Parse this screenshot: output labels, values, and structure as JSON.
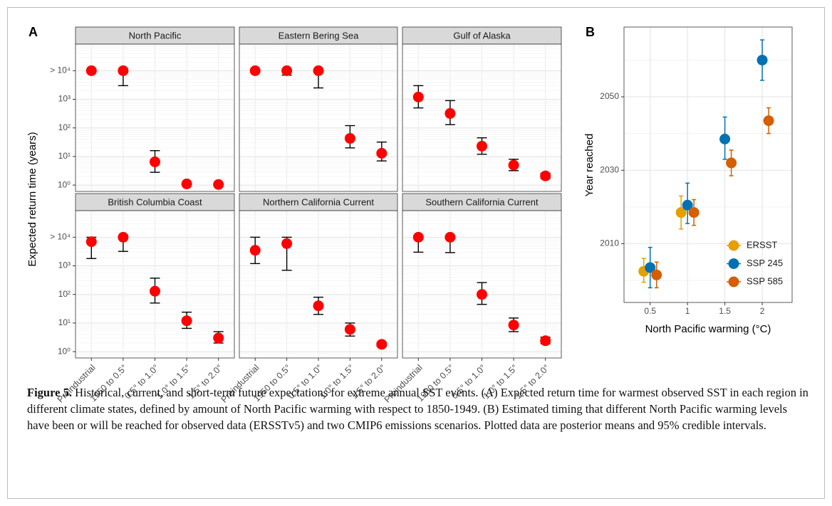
{
  "chart_data": [
    {
      "type": "facet-dotplot",
      "panel_label": "A",
      "ylabel": "Expected return time (years)",
      "log_y": true,
      "color": "#ff0000",
      "categories": [
        "Preindustrial",
        "1950 to 0.5°",
        "0.5° to 1.0°",
        "1.0° to 1.5°",
        "1.5° to 2.0°"
      ],
      "ylim": [
        0.6,
        85000
      ],
      "yticks": [
        {
          "value": 1,
          "label": "10⁰"
        },
        {
          "value": 10,
          "label": "10¹"
        },
        {
          "value": 100,
          "label": "10²"
        },
        {
          "value": 1000,
          "label": "10³"
        },
        {
          "value": 10000,
          "label": "> 10⁴"
        }
      ],
      "grid": true,
      "facets": [
        {
          "title": "North Pacific",
          "values": [
            10000,
            10000,
            6.5,
            1.1,
            1.05
          ],
          "lower": [
            null,
            3000,
            2.8,
            null,
            null
          ],
          "upper": [
            null,
            10000,
            16,
            null,
            null
          ]
        },
        {
          "title": "Eastern Bering Sea",
          "values": [
            10000,
            10000,
            10000,
            43,
            13
          ],
          "lower": [
            null,
            7000,
            2500,
            20,
            7
          ],
          "upper": [
            null,
            10500,
            10000,
            120,
            32
          ]
        },
        {
          "title": "Gulf of Alaska",
          "values": [
            1200,
            320,
            23,
            5,
            2.1
          ],
          "lower": [
            500,
            130,
            12,
            3.2,
            1.7
          ],
          "upper": [
            3000,
            900,
            45,
            8,
            2.6
          ]
        },
        {
          "title": "British Columbia Coast",
          "values": [
            7000,
            10000,
            130,
            12,
            3
          ],
          "lower": [
            1800,
            3200,
            50,
            6.5,
            2
          ],
          "upper": [
            10000,
            10000,
            370,
            24,
            5
          ]
        },
        {
          "title": "Northern California Current",
          "values": [
            3500,
            6000,
            40,
            6,
            1.8
          ],
          "lower": [
            1200,
            700,
            20,
            3.5,
            1.5
          ],
          "upper": [
            10000,
            10000,
            80,
            10,
            2.1
          ]
        },
        {
          "title": "Southern California Current",
          "values": [
            10000,
            10000,
            100,
            8.5,
            2.4
          ],
          "lower": [
            3000,
            2900,
            45,
            5,
            1.9
          ],
          "upper": [
            10000,
            10000,
            260,
            15,
            3.2
          ]
        }
      ]
    },
    {
      "type": "dodged-dotplot",
      "panel_label": "B",
      "xlabel": "North Pacific warming (°C)",
      "ylabel": "Year reached",
      "x": [
        0.5,
        1,
        1.5,
        2
      ],
      "xlim": [
        0.15,
        2.4
      ],
      "xticks": [
        0.5,
        1,
        1.5,
        2
      ],
      "ylim": [
        1994,
        2069
      ],
      "yticks": [
        2010,
        2030,
        2050
      ],
      "grid": true,
      "legend": "bottom-right",
      "series": [
        {
          "name": "ERSST",
          "color": "#e69f00",
          "values": [
            2002.5,
            2018.5,
            null,
            null
          ],
          "lower": [
            1999.5,
            2014,
            null,
            null
          ],
          "upper": [
            2006,
            2023,
            null,
            null
          ]
        },
        {
          "name": "SSP 245",
          "color": "#0072b2",
          "values": [
            2003.5,
            2020.5,
            2038.5,
            2060
          ],
          "lower": [
            1998,
            2015.5,
            2033,
            2054.5
          ],
          "upper": [
            2009,
            2026.5,
            2044.5,
            2065.5
          ]
        },
        {
          "name": "SSP 585",
          "color": "#d55e00",
          "values": [
            2001.5,
            2018.5,
            2032,
            2043.5
          ],
          "lower": [
            1998,
            2015,
            2028.5,
            2040
          ],
          "upper": [
            2005,
            2022,
            2035.5,
            2047
          ]
        }
      ]
    }
  ],
  "caption": {
    "label": "Figure 5.",
    "text": "Historical, current, and short-term future expectations for extreme annual SST events. (A) Expected return time for warmest observed SST in each region in different climate states, defined by amount of North Pacific warming with respect to 1850-1949. (B) Estimated timing that different North Pacific warming levels have been or will be reached for observed data (ERSSTv5) and two CMIP6 emissions scenarios. Plotted data are posterior means and 95% credible intervals."
  }
}
